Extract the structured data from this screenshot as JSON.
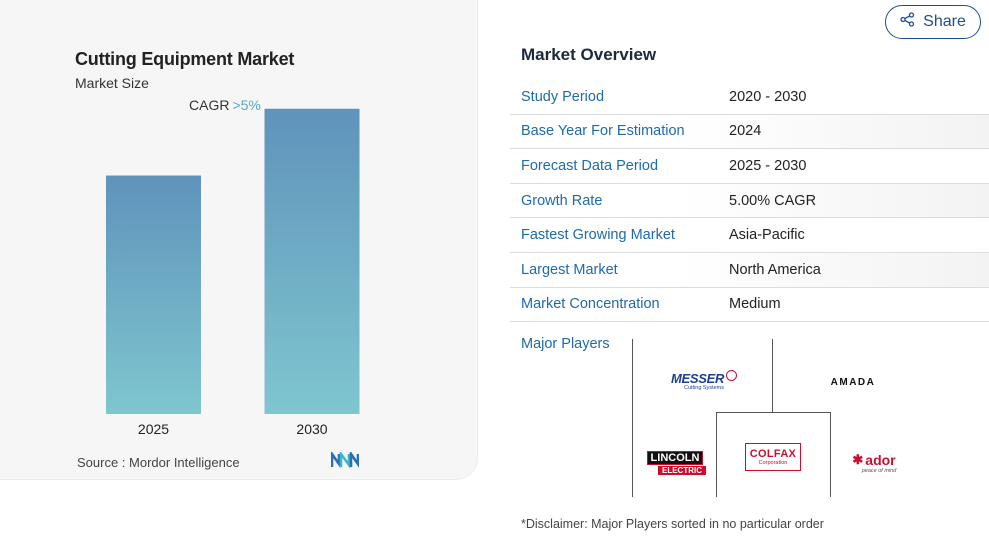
{
  "chart": {
    "title": "Cutting Equipment Market",
    "subtitle": "Market Size",
    "cagr_label": "CAGR",
    "cagr_value": ">5%",
    "source": "Source :  Mordor Intelligence"
  },
  "chart_data": {
    "type": "bar",
    "title": "Cutting Equipment Market",
    "subtitle": "Market Size",
    "categories": [
      "2025",
      "2030"
    ],
    "values": [
      1.0,
      1.28
    ],
    "annotation": "CAGR >5%",
    "xlabel": "",
    "ylabel": "",
    "ylim": [
      0,
      1.3
    ],
    "grid": false,
    "colors": {
      "bar_top": "#5f93bb",
      "bar_bottom": "#7fc6cf"
    }
  },
  "share": {
    "label": "Share",
    "icon": "share-icon"
  },
  "overview": {
    "title": "Market Overview",
    "rows": [
      {
        "label": "Study Period",
        "value": "2020 - 2030"
      },
      {
        "label": "Base Year For Estimation",
        "value": "2024"
      },
      {
        "label": "Forecast Data Period",
        "value": "2025 - 2030"
      },
      {
        "label": "Growth Rate",
        "value": "5.00% CAGR"
      },
      {
        "label": "Fastest Growing Market",
        "value": "Asia-Pacific"
      },
      {
        "label": "Largest Market",
        "value": "North America"
      },
      {
        "label": "Market Concentration",
        "value": "Medium"
      }
    ],
    "major_players_label": "Major Players",
    "players": [
      {
        "name": "MESSER",
        "tag": "Cutting Systems",
        "color": "#1d3f8f"
      },
      {
        "name": "AMADA",
        "color": "#111111"
      },
      {
        "name": "LINCOLN",
        "sub": "ELECTRIC",
        "color": "#c8102e"
      },
      {
        "name": "COLFAX",
        "sub": "Corporation",
        "color": "#c8102e"
      },
      {
        "name": "ador",
        "tag": "peace of mind",
        "color": "#c8102e"
      }
    ]
  },
  "disclaimer": "*Disclaimer: Major Players sorted in no particular order",
  "colors": {
    "accent": "#1f6aa8",
    "brand_blue": "#1d4e89",
    "cagr": "#5aa7c4"
  }
}
